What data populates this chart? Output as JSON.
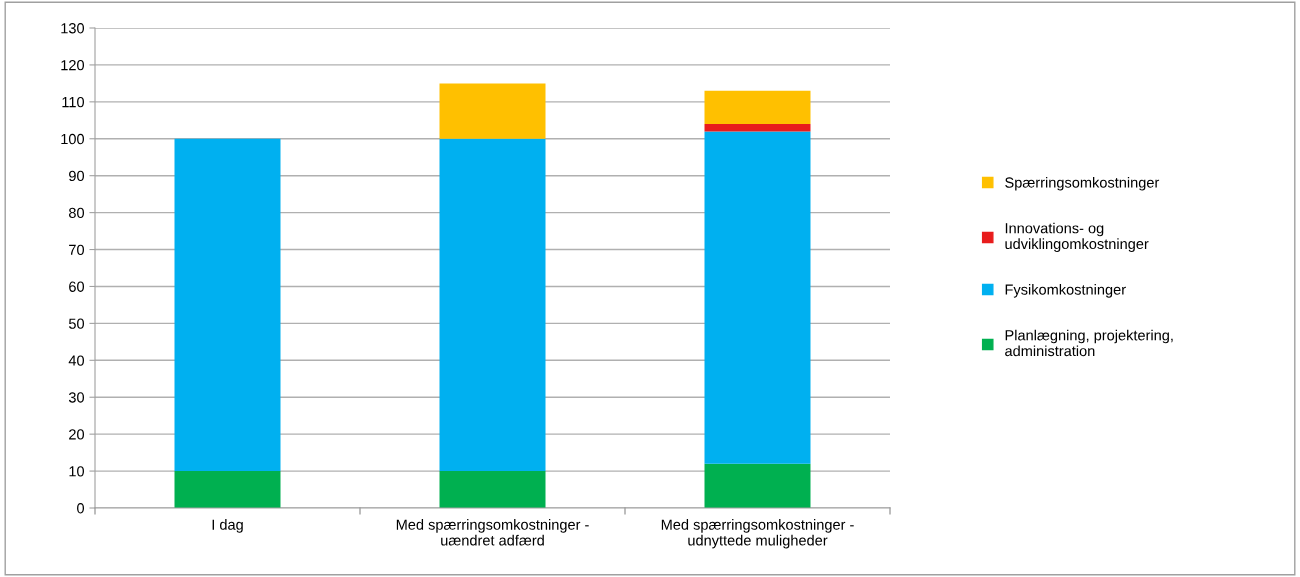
{
  "chart_data": {
    "type": "bar",
    "stacked": true,
    "categories": [
      "I dag",
      "Med spærringsomkostninger -\nuændret adfærd",
      "Med spærringsomkostninger -\nudnyttede muligheder"
    ],
    "series": [
      {
        "name": "Planlægning, projektering,\nadministration",
        "color": "#00b050",
        "values": [
          10,
          10,
          12
        ]
      },
      {
        "name": "Fysikomkostninger",
        "color": "#00b0f0",
        "values": [
          90,
          90,
          90
        ]
      },
      {
        "name": "Innovations- og\nudviklingomkostninger",
        "color": "#e81c1c",
        "values": [
          0,
          0,
          2
        ]
      },
      {
        "name": "Spærringsomkostninger",
        "color": "#ffc000",
        "values": [
          0,
          15,
          9
        ]
      }
    ],
    "ylim": [
      0,
      130
    ],
    "yticks": [
      0,
      10,
      20,
      30,
      40,
      50,
      60,
      70,
      80,
      90,
      100,
      110,
      120,
      130
    ],
    "grid": "y",
    "legend": "right"
  }
}
